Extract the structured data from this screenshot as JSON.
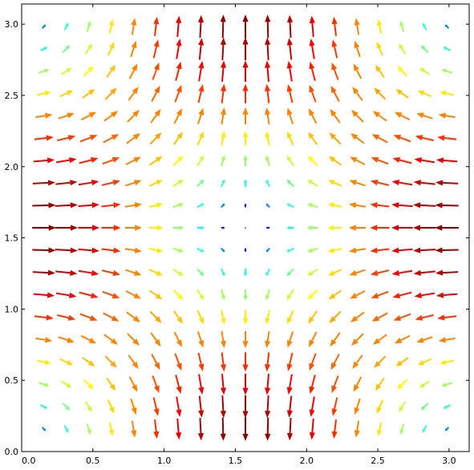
{
  "chart_data": {
    "type": "quiver",
    "title": "",
    "xlabel": "",
    "ylabel": "",
    "xlim": [
      0,
      3.14159
    ],
    "ylim": [
      0,
      3.14159
    ],
    "x_ticks": [
      0.0,
      0.5,
      1.0,
      1.5,
      2.0,
      2.5,
      3.0
    ],
    "y_ticks": [
      0.0,
      0.5,
      1.0,
      1.5,
      2.0,
      2.5,
      3.0
    ],
    "x_tick_labels": [
      "0.0",
      "0.5",
      "1.0",
      "1.5",
      "2.0",
      "2.5",
      "3.0"
    ],
    "y_tick_labels": [
      "0.0",
      "0.5",
      "1.0",
      "1.5",
      "2.0",
      "2.5",
      "3.0"
    ],
    "grid_x": [
      0.1571,
      0.3142,
      0.4712,
      0.6283,
      0.7854,
      0.9425,
      1.0996,
      1.2566,
      1.4137,
      1.5708,
      1.7279,
      1.885,
      2.042,
      2.1991,
      2.3562,
      2.5133,
      2.6704,
      2.8274,
      2.9845
    ],
    "grid_y": [
      0.1571,
      0.3142,
      0.4712,
      0.6283,
      0.7854,
      0.9425,
      1.0996,
      1.2566,
      1.4137,
      1.5708,
      1.7279,
      1.885,
      2.042,
      2.1991,
      2.3562,
      2.5133,
      2.6704,
      2.8274,
      2.9845
    ],
    "u_expression": "cos(x)*sin(y)",
    "v_expression": "-sin(x)*cos(y)",
    "colormap": "jet",
    "colormap_stops": [
      "#00007f",
      "#0000ff",
      "#00ffff",
      "#7fff7f",
      "#ffff00",
      "#ff7f00",
      "#ff0000",
      "#7f0000"
    ],
    "grid": false,
    "legend": "none"
  }
}
